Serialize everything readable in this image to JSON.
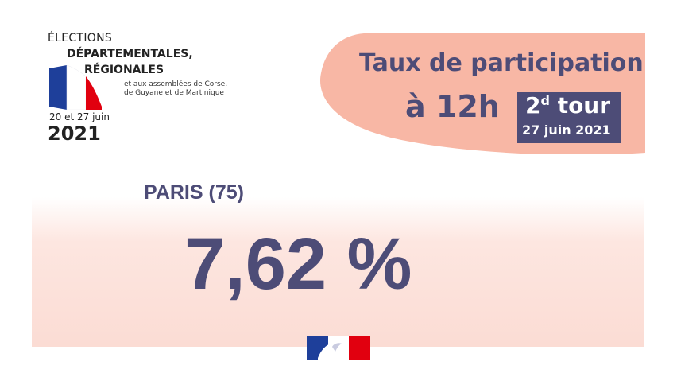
{
  "colors": {
    "accent": "#4d4c77",
    "salmon": "#f8b7a5",
    "pink_panel": "#fbdcd4",
    "flag_blue": "#1e3f9a",
    "flag_red": "#e1000f"
  },
  "logo": {
    "line1": "ÉLECTIONS",
    "line2": "DÉPARTEMENTALES,",
    "line3": "RÉGIONALES",
    "line4": "et aux assemblées de Corse,",
    "line5": "de Guyane et de Martinique",
    "dates": "20 et 27 juin",
    "year": "2021",
    "icon": "french-flag-ribbon-icon"
  },
  "header": {
    "title": "Taux de participation",
    "time": "à 12h",
    "tour_number": "2",
    "tour_suffix": "d",
    "tour_word": "tour",
    "tour_date": "27 juin 2021"
  },
  "result": {
    "city": "PARIS",
    "department": "(75)",
    "rate": "7,62 %",
    "rate_value": 7.62
  },
  "footer": {
    "icon": "republique-francaise-marianne-icon"
  }
}
